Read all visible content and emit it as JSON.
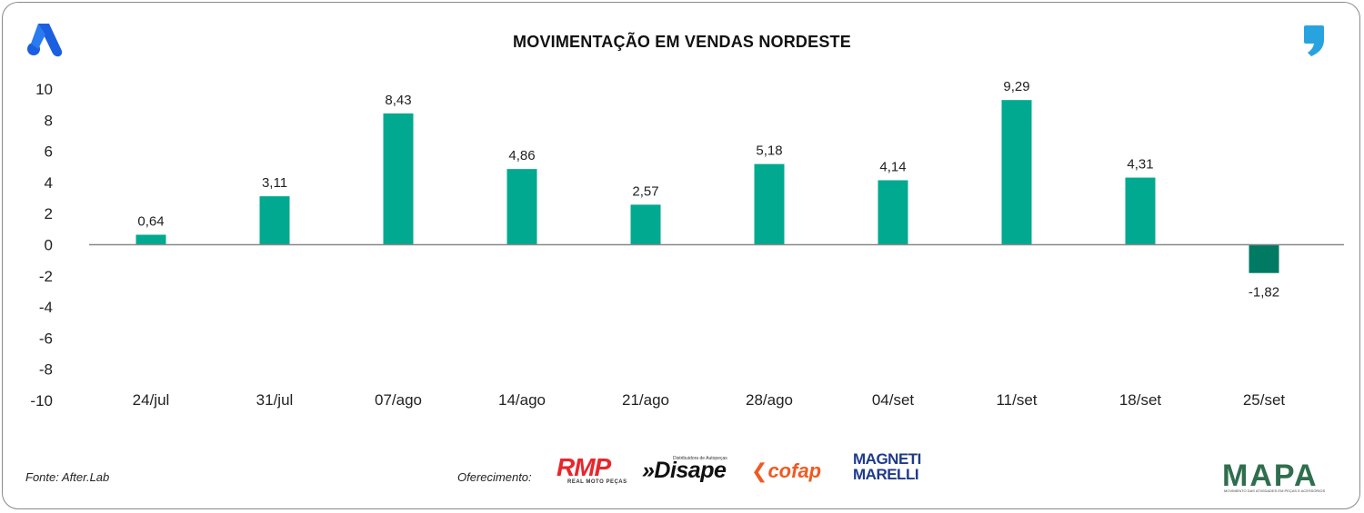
{
  "title": "MOVIMENTAÇÃO EM VENDAS NORDESTE",
  "chart_data": {
    "type": "bar",
    "title": "MOVIMENTAÇÃO EM VENDAS NORDESTE",
    "categories": [
      "24/jul",
      "31/jul",
      "07/ago",
      "14/ago",
      "21/ago",
      "28/ago",
      "04/set",
      "11/set",
      "18/set",
      "25/set"
    ],
    "values": [
      0.64,
      3.11,
      8.43,
      4.86,
      2.57,
      5.18,
      4.14,
      9.29,
      4.31,
      -1.82
    ],
    "value_labels": [
      "0,64",
      "3,11",
      "8,43",
      "4,86",
      "2,57",
      "5,18",
      "4,14",
      "9,29",
      "4,31",
      "-1,82"
    ],
    "ylim": [
      -10,
      10
    ],
    "yticks": [
      10,
      8,
      6,
      4,
      2,
      0,
      -2,
      -4,
      -6,
      -8,
      -10
    ],
    "xlabel": "",
    "ylabel": "",
    "grid": false,
    "colors": {
      "positive": "#00a98f",
      "negative": "#007a63",
      "axis": "#888888"
    }
  },
  "footer": {
    "source": "Fonte: After.Lab",
    "offer_label": "Oferecimento:",
    "sponsors": {
      "rmp": "RMP",
      "rmp_sub": "REAL MOTO PEÇAS",
      "disape": "»Disape",
      "disape_sub": "Distribuidora de Autopeças",
      "cofap": "cofap",
      "magneti_line1": "MAGNETI",
      "magneti_line2": "MARELLI"
    },
    "mapa": "MAPA",
    "mapa_sub": "MOVIMENTO DAS ATIVIDADES EM PEÇAS E ACESSÓRIOS"
  },
  "icons": {
    "top_left": "after-lab-logo-icon",
    "top_right": "comma-logo-icon"
  }
}
